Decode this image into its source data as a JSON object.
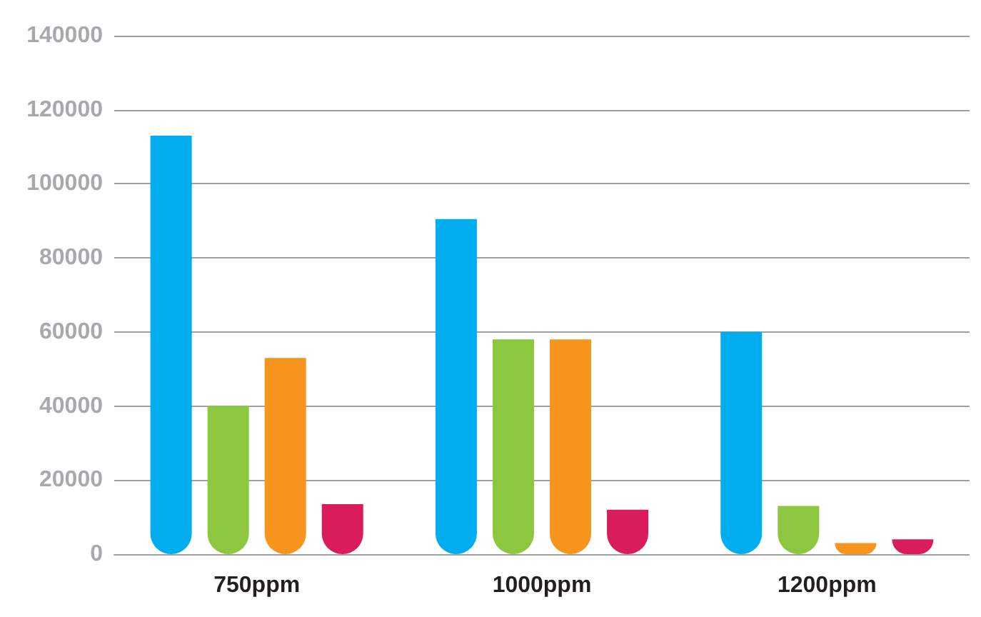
{
  "chart_data": {
    "type": "bar",
    "categories": [
      "750ppm",
      "1000ppm",
      "1200ppm"
    ],
    "series": [
      {
        "color": "#00aeef",
        "values": [
          113000,
          90500,
          60000
        ]
      },
      {
        "color": "#8dc63f",
        "values": [
          40000,
          58000,
          13000
        ]
      },
      {
        "color": "#f7941d",
        "values": [
          53000,
          58000,
          3000
        ]
      },
      {
        "color": "#da1c5c",
        "values": [
          13500,
          12000,
          4000
        ]
      }
    ],
    "ylim": [
      0,
      140000
    ],
    "yticks": [
      0,
      20000,
      40000,
      60000,
      80000,
      100000,
      120000,
      140000
    ],
    "grid": "y"
  }
}
